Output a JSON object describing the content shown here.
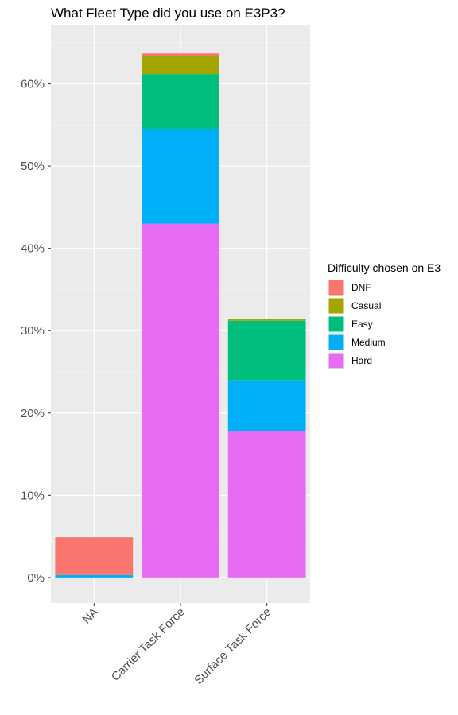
{
  "chart_data": {
    "type": "bar",
    "stacked": true,
    "title": "What Fleet Type did you use on E3P3?",
    "xlabel": "",
    "ylabel": "",
    "categories": [
      "NA",
      "Carrier Task Force",
      "Surface Task Force"
    ],
    "series": [
      {
        "name": "Hard",
        "color": "#E76BF3",
        "values": [
          0.0,
          43.0,
          17.8
        ]
      },
      {
        "name": "Medium",
        "color": "#00B0F6",
        "values": [
          0.3,
          11.5,
          6.2
        ]
      },
      {
        "name": "Easy",
        "color": "#00BF7D",
        "values": [
          0.0,
          6.7,
          7.2
        ]
      },
      {
        "name": "Casual",
        "color": "#A3A500",
        "values": [
          0.0,
          2.2,
          0.2
        ]
      },
      {
        "name": "DNF",
        "color": "#F8766D",
        "values": [
          4.6,
          0.3,
          0.0
        ]
      }
    ],
    "legend": {
      "title": "Difficulty chosen on E3",
      "order": [
        "DNF",
        "Casual",
        "Easy",
        "Medium",
        "Hard"
      ],
      "position": "right"
    },
    "y_ticks": [
      0,
      10,
      20,
      30,
      40,
      50,
      60
    ],
    "y_tick_suffix": "%",
    "ylim": [
      -3.1,
      67.2
    ],
    "grid": true
  }
}
